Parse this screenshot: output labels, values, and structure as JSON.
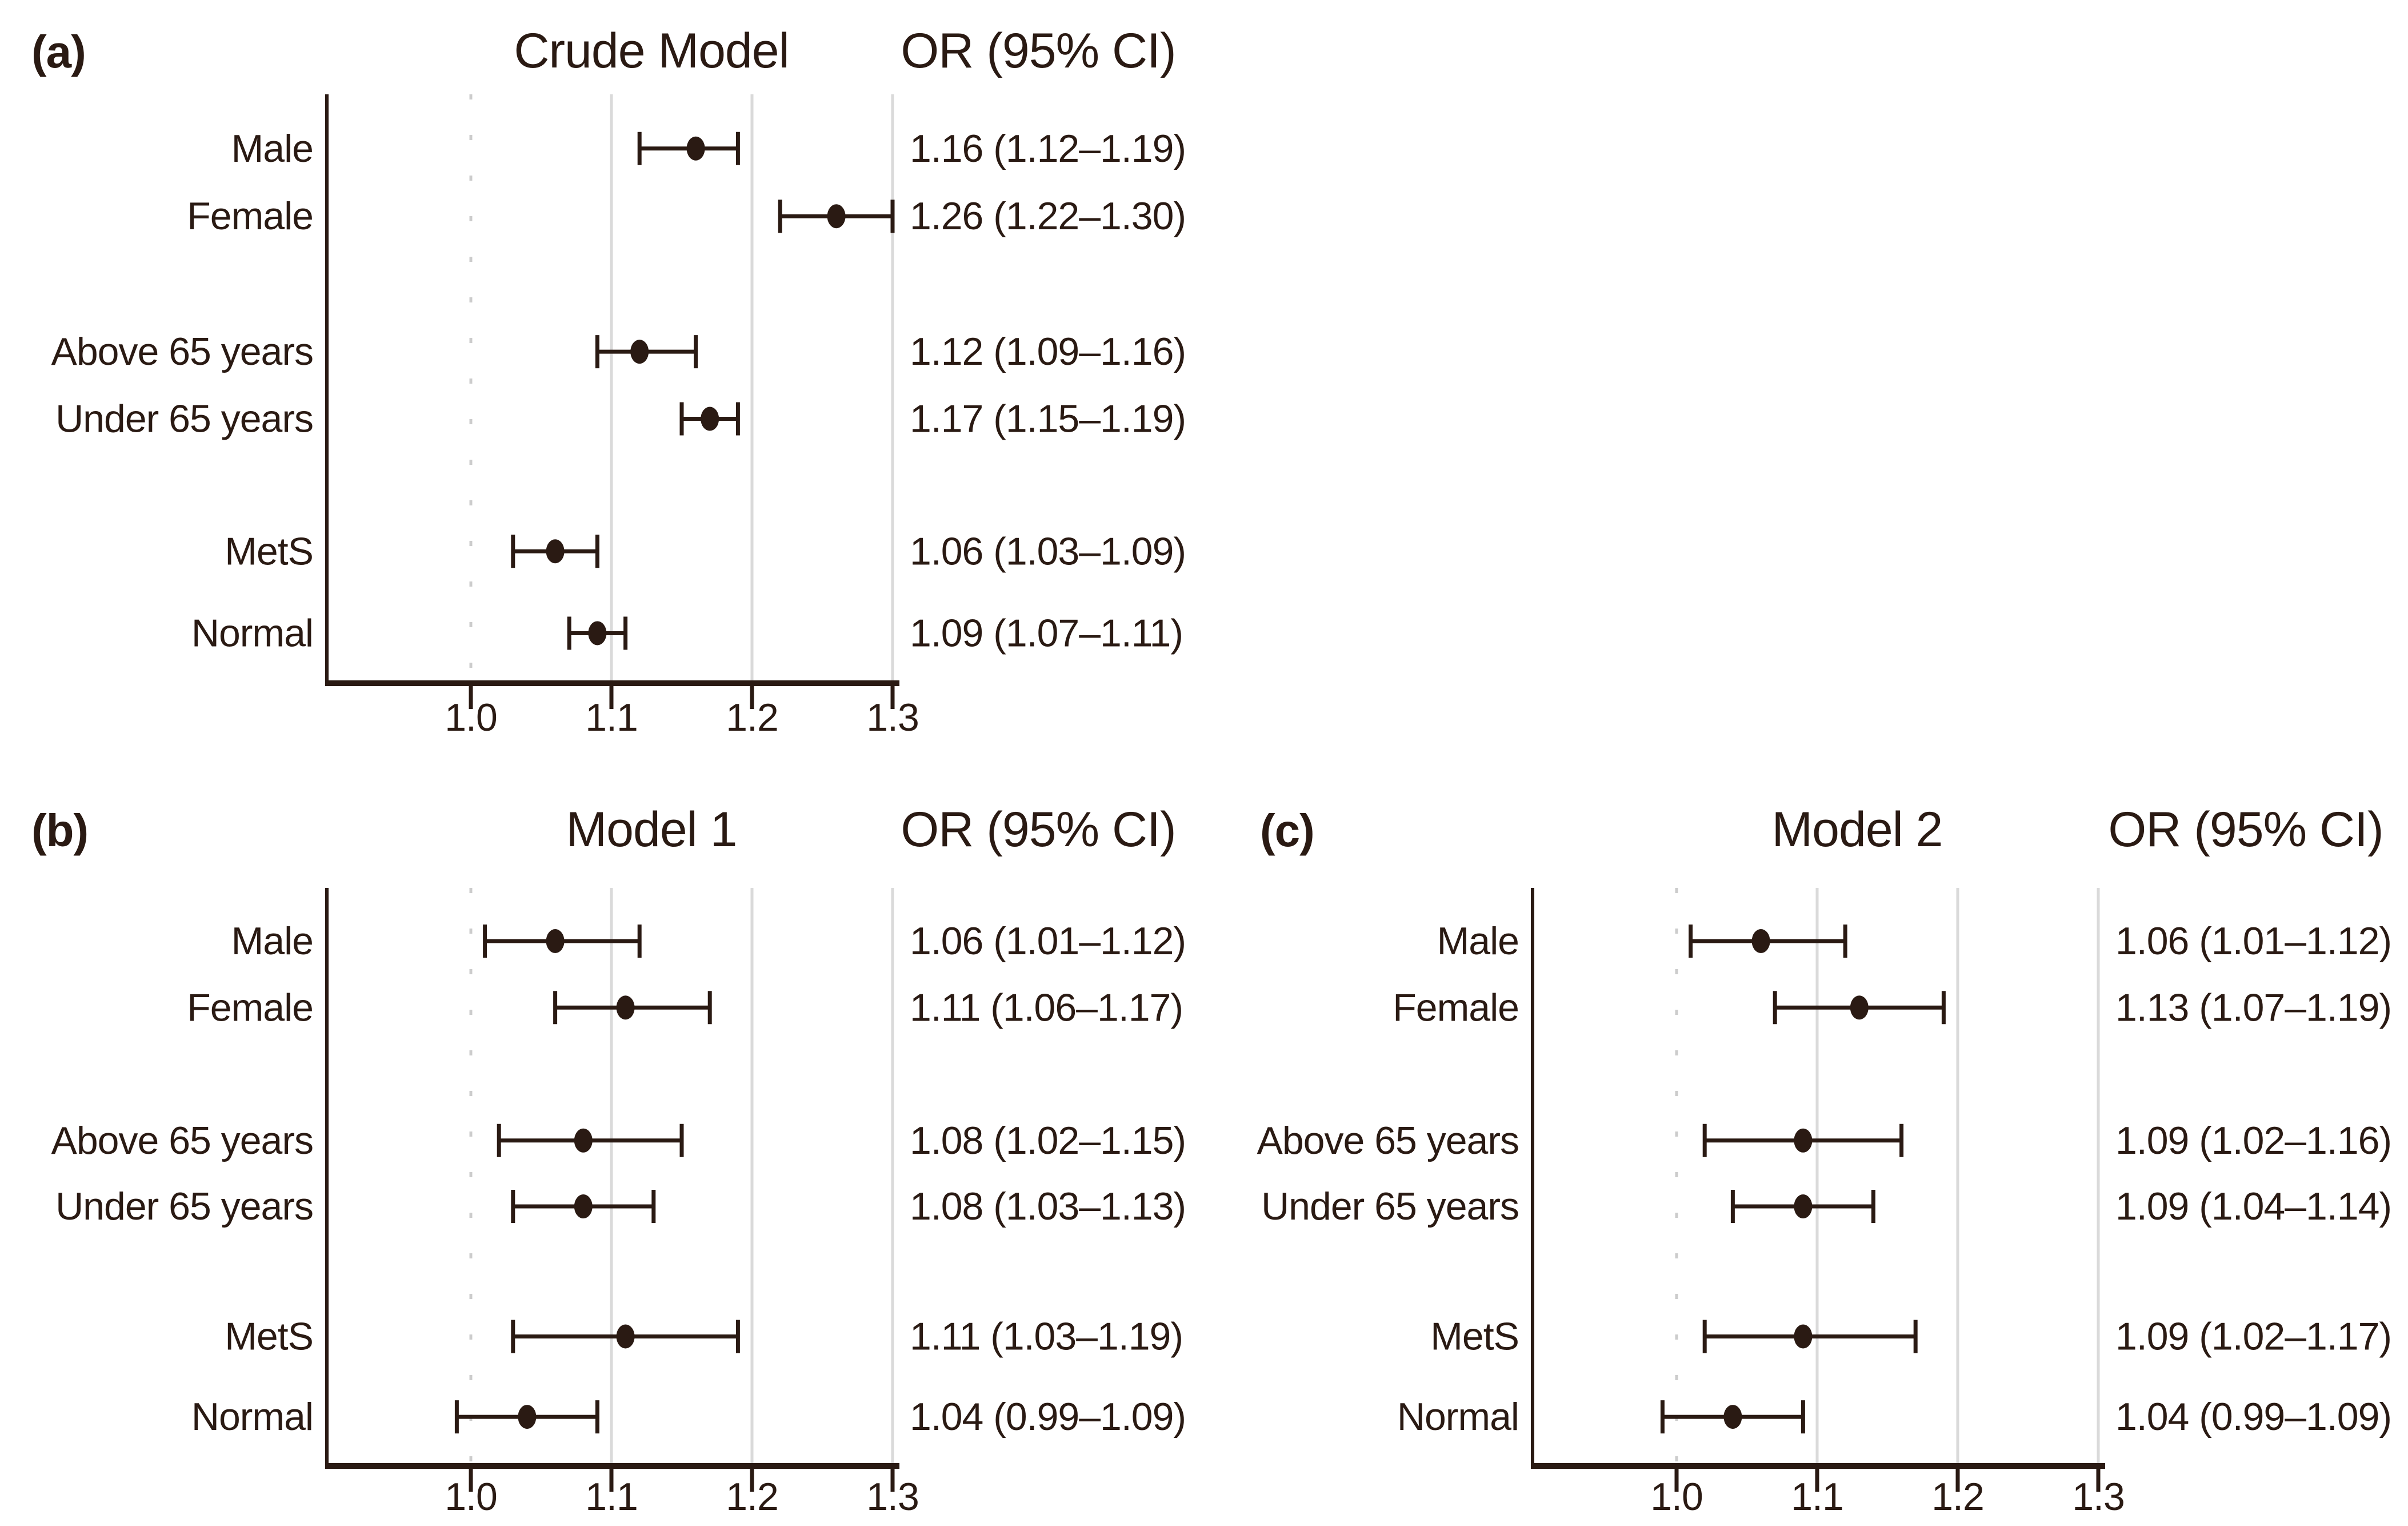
{
  "style": {
    "background": "#ffffff",
    "ink": "#2a1a13",
    "grid": "#dadada",
    "ref_dotted": "#cccccc"
  },
  "chart_data": [
    {
      "type": "scatter",
      "subtype": "forest",
      "panel_label": "(a)",
      "title": "Crude Model",
      "or_header": "OR (95% CI)",
      "categories": [
        "Male",
        "Female",
        "Above 65 years",
        "Under 65 years",
        "MetS",
        "Normal"
      ],
      "or": [
        1.16,
        1.26,
        1.12,
        1.17,
        1.06,
        1.09
      ],
      "ci_low": [
        1.12,
        1.22,
        1.09,
        1.15,
        1.03,
        1.07
      ],
      "ci_high": [
        1.19,
        1.3,
        1.16,
        1.19,
        1.09,
        1.11
      ],
      "or_text": [
        "1.16 (1.12–1.19)",
        "1.26 (1.22–1.30)",
        "1.12 (1.09–1.16)",
        "1.17 (1.15–1.19)",
        "1.06 (1.03–1.09)",
        "1.09 (1.07–1.11)"
      ],
      "xticks": [
        "1.0",
        "1.1",
        "1.2",
        "1.3"
      ],
      "xtick_values": [
        1.0,
        1.1,
        1.2,
        1.3
      ],
      "ref_line": 1.0,
      "xlim": [
        0.9,
        1.305
      ],
      "grid": "vertical",
      "legend": "none"
    },
    {
      "type": "scatter",
      "subtype": "forest",
      "panel_label": "(b)",
      "title": "Model 1",
      "or_header": "OR (95% CI)",
      "categories": [
        "Male",
        "Female",
        "Above 65 years",
        "Under 65 years",
        "MetS",
        "Normal"
      ],
      "or": [
        1.06,
        1.11,
        1.08,
        1.08,
        1.11,
        1.04
      ],
      "ci_low": [
        1.01,
        1.06,
        1.02,
        1.03,
        1.03,
        0.99
      ],
      "ci_high": [
        1.12,
        1.17,
        1.15,
        1.13,
        1.19,
        1.09
      ],
      "or_text": [
        "1.06 (1.01–1.12)",
        "1.11 (1.06–1.17)",
        "1.08 (1.02–1.15)",
        "1.08 (1.03–1.13)",
        "1.11 (1.03–1.19)",
        "1.04 (0.99–1.09)"
      ],
      "xticks": [
        "1.0",
        "1.1",
        "1.2",
        "1.3"
      ],
      "xtick_values": [
        1.0,
        1.1,
        1.2,
        1.3
      ],
      "ref_line": 1.0,
      "xlim": [
        0.9,
        1.305
      ],
      "grid": "vertical",
      "legend": "none"
    },
    {
      "type": "scatter",
      "subtype": "forest",
      "panel_label": "(c)",
      "title": "Model 2",
      "or_header": "OR (95% CI)",
      "categories": [
        "Male",
        "Female",
        "Above 65 years",
        "Under 65 years",
        "MetS",
        "Normal"
      ],
      "or": [
        1.06,
        1.13,
        1.09,
        1.09,
        1.09,
        1.04
      ],
      "ci_low": [
        1.01,
        1.07,
        1.02,
        1.04,
        1.02,
        0.99
      ],
      "ci_high": [
        1.12,
        1.19,
        1.16,
        1.14,
        1.17,
        1.09
      ],
      "or_text": [
        "1.06 (1.01–1.12)",
        "1.13 (1.07–1.19)",
        "1.09 (1.02–1.16)",
        "1.09 (1.04–1.14)",
        "1.09 (1.02–1.17)",
        "1.04 (0.99–1.09)"
      ],
      "xticks": [
        "1.0",
        "1.1",
        "1.2",
        "1.3"
      ],
      "xtick_values": [
        1.0,
        1.1,
        1.2,
        1.3
      ],
      "ref_line": 1.0,
      "xlim": [
        0.9,
        1.305
      ],
      "grid": "vertical",
      "legend": "none"
    }
  ]
}
